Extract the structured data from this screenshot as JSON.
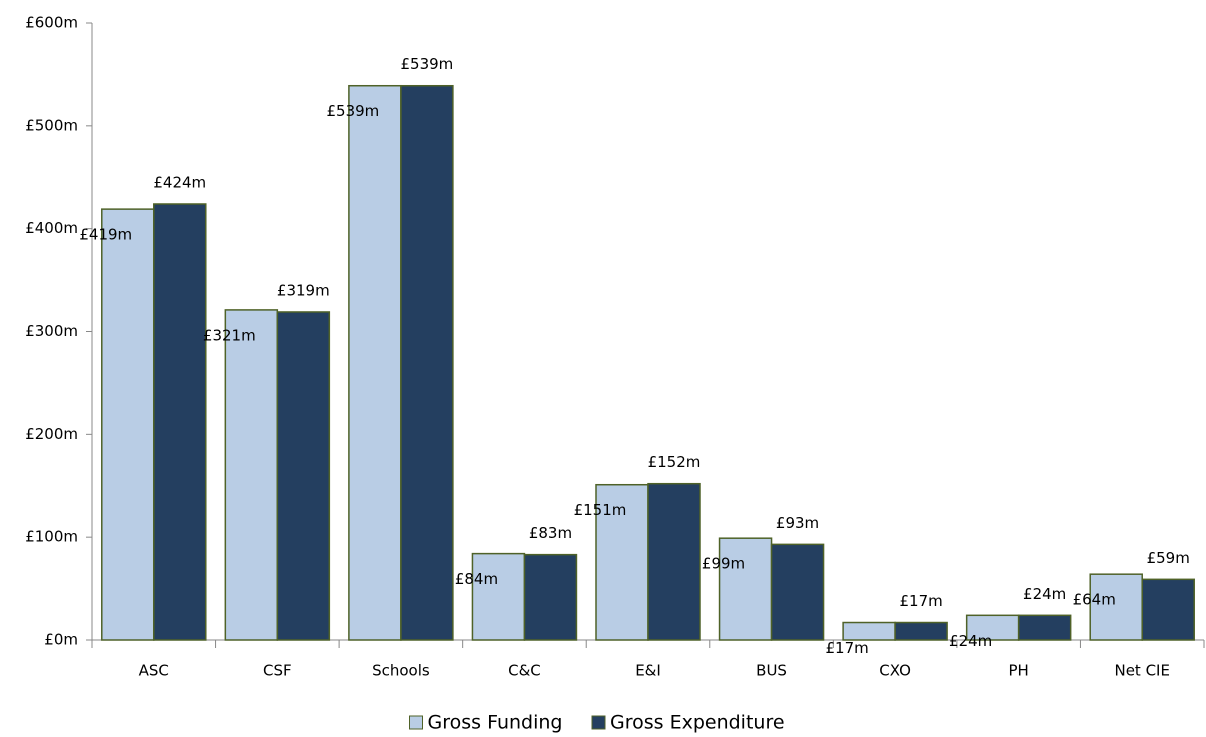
{
  "chart_data": {
    "type": "bar",
    "categories": [
      "ASC",
      "CSF",
      "Schools",
      "C&C",
      "E&I",
      "BUS",
      "CXO",
      "PH",
      "Net CIE"
    ],
    "series": [
      {
        "name": "Gross Funding",
        "color": "#b9cde5",
        "values": [
          419,
          321,
          539,
          84,
          151,
          99,
          17,
          24,
          64
        ],
        "value_labels": [
          "£419m",
          "£321m",
          "£539m",
          "£84m",
          "£151m",
          "£99m",
          "£17m",
          "£24m",
          "£64m"
        ]
      },
      {
        "name": "Gross Expenditure",
        "color": "#243f60",
        "values": [
          424,
          319,
          539,
          83,
          152,
          93,
          17,
          24,
          59
        ],
        "value_labels": [
          "£424m",
          "£319m",
          "£539m",
          "£83m",
          "£152m",
          "£93m",
          "£17m",
          "£24m",
          "£59m"
        ]
      }
    ],
    "ylim": [
      0,
      600
    ],
    "yticks": [
      {
        "value": 0,
        "label": "£0m"
      },
      {
        "value": 100,
        "label": "£100m"
      },
      {
        "value": 200,
        "label": "£200m"
      },
      {
        "value": 300,
        "label": "£300m"
      },
      {
        "value": 400,
        "label": "£400m"
      },
      {
        "value": 500,
        "label": "£500m"
      },
      {
        "value": 600,
        "label": "£600m"
      }
    ],
    "grid": false,
    "legend": "bottom"
  }
}
